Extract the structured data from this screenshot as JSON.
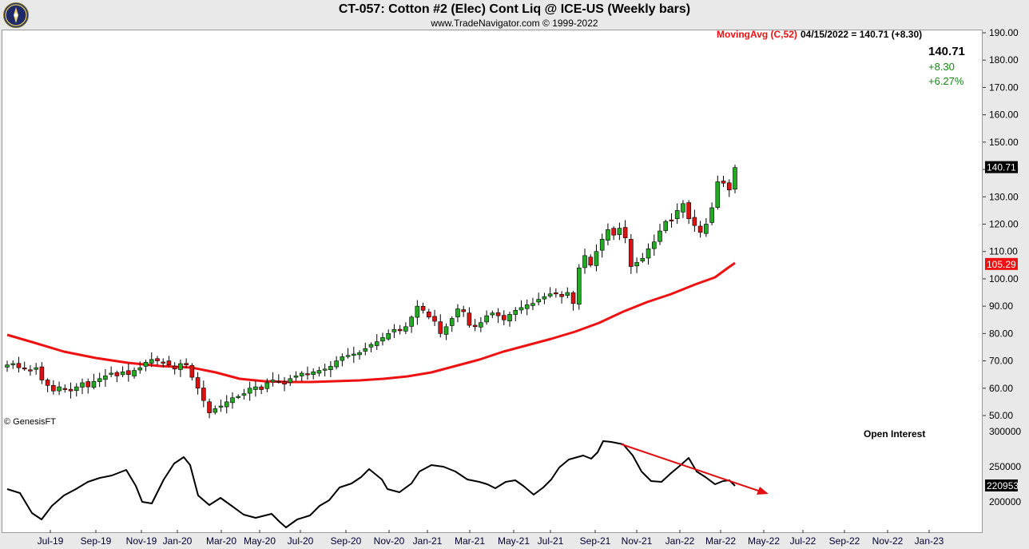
{
  "header": {
    "title": "CT-057:  Cotton #2 (Elec) Cont Liq @ ICE-US  (Weekly bars)",
    "subtitle": "www.TradeNavigator.com © 1999-2022"
  },
  "legend": {
    "ma_label": "MovingAvg (C,52)",
    "ma_value": "04/15/2022 = 140.71 (+8.30)"
  },
  "quote": {
    "last": "140.71",
    "change": "+8.30",
    "pct": "+6.27%"
  },
  "badges": {
    "price": "140.71",
    "ma": "105.29",
    "oi": "220953"
  },
  "copyright": "© GenesisFT",
  "oi_title": "Open Interest",
  "colors": {
    "up": "#22aa22",
    "down": "#dd1111",
    "ma": "#ee1111",
    "oi": "#000000",
    "badge_price": "#000000",
    "badge_ma": "#ee1111"
  },
  "chart_data": [
    {
      "type": "candlestick",
      "price_axis": {
        "min": 45,
        "max": 192,
        "ticks": [
          "190.00",
          "180.00",
          "170.00",
          "160.00",
          "150.00",
          "140.00",
          "130.00",
          "120.00",
          "110.00",
          "100.00",
          "90.00",
          "80.00",
          "70.00",
          "60.00",
          "50.00"
        ]
      },
      "x_axis": {
        "ticks": [
          "Jul-19",
          "Sep-19",
          "Nov-19",
          "Jan-20",
          "Mar-20",
          "May-20",
          "Jul-20",
          "Sep-20",
          "Nov-20",
          "Jan-21",
          "Mar-21",
          "May-21",
          "Jul-21",
          "Sep-21",
          "Nov-21",
          "Jan-22",
          "Mar-22",
          "May-22",
          "Jul-22",
          "Sep-22",
          "Nov-22",
          "Jan-23"
        ]
      },
      "closes": [
        68.5,
        69.0,
        67.5,
        67.0,
        66.5,
        67.5,
        63.0,
        61.0,
        59.0,
        60.5,
        59.5,
        59.0,
        60.5,
        62.0,
        60.5,
        62.5,
        63.5,
        64.5,
        65.5,
        64.5,
        66.0,
        65.0,
        66.5,
        67.5,
        69.5,
        70.5,
        70.0,
        69.5,
        68.5,
        67.0,
        69.0,
        68.5,
        64.0,
        60.0,
        55.5,
        51.0,
        52.5,
        53.5,
        55.0,
        56.5,
        57.0,
        58.0,
        60.0,
        60.5,
        59.5,
        62.0,
        63.0,
        62.5,
        61.5,
        63.5,
        64.5,
        65.5,
        65.0,
        66.0,
        66.5,
        67.0,
        68.0,
        70.0,
        71.5,
        72.0,
        72.5,
        73.0,
        74.5,
        76.0,
        77.0,
        78.5,
        80.0,
        81.5,
        81.0,
        82.5,
        86.0,
        90.0,
        88.5,
        86.0,
        84.5,
        80.0,
        82.5,
        85.5,
        89.0,
        88.0,
        83.0,
        82.5,
        84.0,
        86.5,
        87.5,
        86.5,
        85.0,
        87.0,
        88.5,
        89.5,
        90.5,
        91.0,
        92.5,
        93.5,
        94.5,
        94.5,
        93.5,
        95.0,
        91.0,
        104.0,
        108.5,
        105.0,
        110.0,
        114.5,
        118.0,
        116.0,
        118.5,
        115.0,
        104.5,
        106.0,
        107.5,
        111.0,
        113.5,
        117.5,
        121.0,
        121.5,
        125.0,
        127.5,
        122.0,
        119.5,
        117.0,
        120.0,
        126.0,
        135.5,
        135.0,
        132.5,
        140.7
      ],
      "moving_avg_52": {
        "start": 79.0,
        "min": 60.5,
        "end": 105.29
      },
      "open_interest": {
        "axis_ticks": [
          "300000",
          "250000",
          "200000"
        ],
        "last": 220953
      }
    }
  ]
}
